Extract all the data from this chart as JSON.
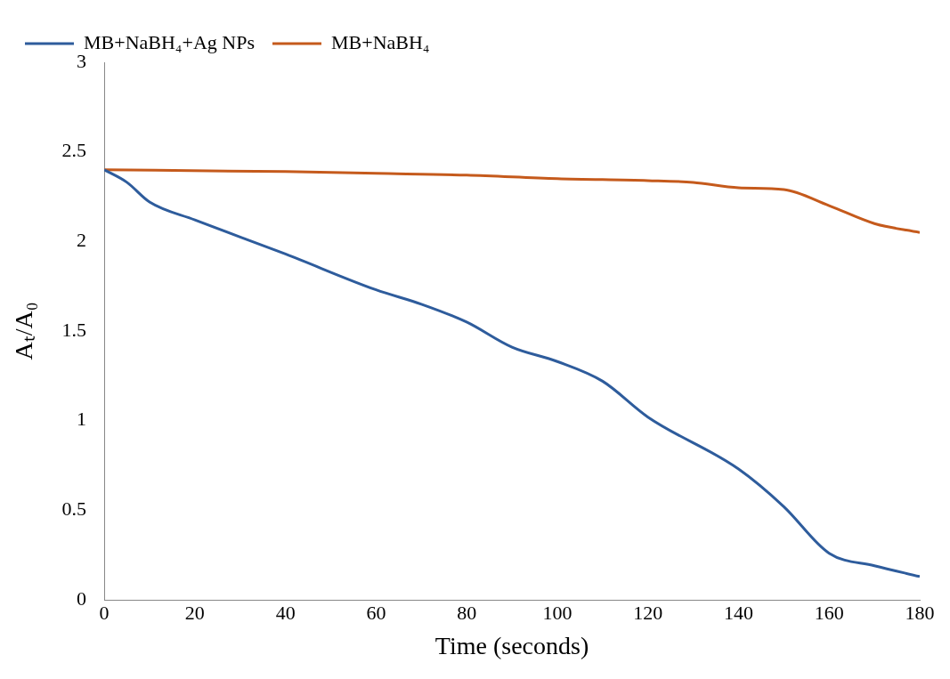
{
  "chart_data": {
    "type": "line",
    "xlabel": "Time (seconds)",
    "ylabel": "Aₜ/A₀",
    "xlim": [
      0,
      180
    ],
    "xticks": [
      0,
      20,
      40,
      60,
      80,
      100,
      120,
      140,
      160,
      180
    ],
    "ylim": [
      0,
      3
    ],
    "yticks": [
      0,
      0.5,
      1,
      1.5,
      2,
      2.5,
      3
    ],
    "grid": false,
    "legend": "top",
    "marker": "none",
    "line_style": "solid",
    "series": [
      {
        "name": "MB+NaBH₄+Ag NPs",
        "color": "#2e5c9c",
        "x": [
          0,
          5,
          10,
          20,
          40,
          60,
          70,
          80,
          90,
          100,
          110,
          120,
          140,
          150,
          160,
          170,
          180
        ],
        "values": [
          2.4,
          2.33,
          2.22,
          2.12,
          1.93,
          1.73,
          1.65,
          1.55,
          1.41,
          1.33,
          1.22,
          1.02,
          0.73,
          0.52,
          0.26,
          0.19,
          0.13
        ]
      },
      {
        "name": "MB+NaBH₄",
        "color": "#c55a1c",
        "x": [
          0,
          40,
          60,
          80,
          100,
          120,
          130,
          140,
          150,
          160,
          170,
          180
        ],
        "values": [
          2.4,
          2.39,
          2.38,
          2.37,
          2.35,
          2.34,
          2.33,
          2.3,
          2.29,
          2.2,
          2.1,
          2.05
        ]
      }
    ]
  }
}
